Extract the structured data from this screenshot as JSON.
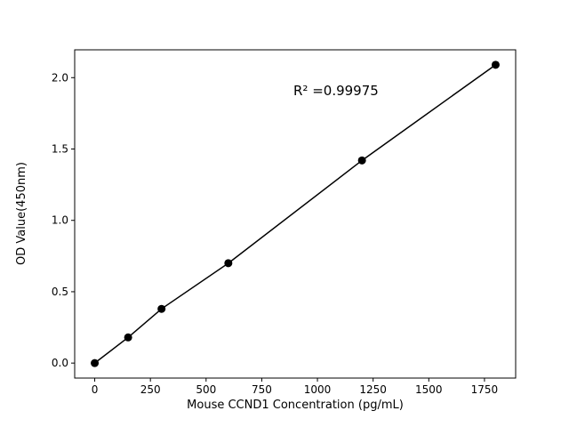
{
  "figure": {
    "background": "#ffffff"
  },
  "chart_data": {
    "type": "scatter",
    "title": "",
    "xlabel": "Mouse CCND1 Concentration (pg/mL)",
    "ylabel": "OD Value(450nm)",
    "annotation": "R² =0.99975",
    "x": [
      0,
      150,
      300,
      600,
      1200,
      1800
    ],
    "y": [
      0.0,
      0.18,
      0.38,
      0.7,
      1.42,
      2.09
    ],
    "fit_line": true,
    "xlim": [
      -90,
      1890
    ],
    "ylim": [
      -0.105,
      2.195
    ],
    "xticks": [
      "0",
      "250",
      "500",
      "750",
      "1000",
      "1250",
      "1500",
      "1750"
    ],
    "yticks": [
      "0.0",
      "0.5",
      "1.0",
      "1.5",
      "2.0"
    ],
    "grid": false,
    "legend": "none",
    "marker_color": "#000000",
    "line_color": "#000000",
    "axis_color": "#000000"
  }
}
